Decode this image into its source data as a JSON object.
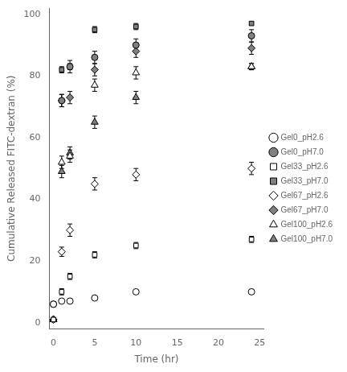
{
  "chart_data": {
    "type": "scatter",
    "xlabel": "Time (hr)",
    "ylabel": "Cumulative Released FITC-dextran (%)",
    "xlim": [
      -0.5,
      25.5
    ],
    "ylim": [
      -2,
      102
    ],
    "xticks": [
      0,
      5,
      10,
      15,
      20,
      25
    ],
    "yticks": [
      0,
      20,
      40,
      60,
      80,
      100
    ],
    "grid": false,
    "legend": "right",
    "series": [
      {
        "name": "Gel0_pH2.6",
        "x": [
          0,
          1,
          2,
          5,
          10,
          24
        ],
        "values": [
          6,
          7,
          7,
          8,
          10,
          10
        ],
        "errors": [
          0.8,
          0.5,
          0.5,
          0.5,
          0.5,
          0.8
        ],
        "marker": "circle",
        "color": "#ffffff"
      },
      {
        "name": "Gel0_pH7.0",
        "x": [
          0,
          1,
          2,
          5,
          10,
          24
        ],
        "values": [
          6,
          72,
          83,
          86,
          90,
          93
        ],
        "errors": [
          0.8,
          2,
          2,
          2,
          2,
          2
        ],
        "marker": "circle",
        "color": "#808080"
      },
      {
        "name": "Gel33_pH2.6",
        "x": [
          0,
          1,
          2,
          5,
          10,
          24
        ],
        "values": [
          1,
          10,
          15,
          22,
          25,
          27
        ],
        "errors": [
          0.3,
          1,
          1,
          1,
          1,
          1
        ],
        "marker": "square",
        "color": "#ffffff"
      },
      {
        "name": "Gel33_pH7.0",
        "x": [
          0,
          1,
          2,
          5,
          10,
          24
        ],
        "values": [
          1,
          82,
          83,
          95,
          96,
          97
        ],
        "errors": [
          0.3,
          1,
          1,
          1,
          1,
          0.5
        ],
        "marker": "square",
        "color": "#808080"
      },
      {
        "name": "Gel67_pH2.6",
        "x": [
          0,
          1,
          2,
          5,
          10,
          24
        ],
        "values": [
          1,
          23,
          30,
          45,
          48,
          50
        ],
        "errors": [
          0.3,
          1.5,
          2,
          2,
          2,
          2
        ],
        "marker": "diamond",
        "color": "#ffffff"
      },
      {
        "name": "Gel67_pH7.0",
        "x": [
          0,
          1,
          2,
          5,
          10,
          24
        ],
        "values": [
          1,
          72,
          73,
          82,
          88,
          89
        ],
        "errors": [
          0.3,
          2,
          2,
          2,
          2,
          2
        ],
        "marker": "diamond",
        "color": "#808080"
      },
      {
        "name": "Gel100_pH2.6",
        "x": [
          0,
          1,
          2,
          5,
          10,
          24
        ],
        "values": [
          1,
          52,
          54,
          77,
          81,
          83
        ],
        "errors": [
          0.3,
          2,
          2,
          2,
          2,
          1
        ],
        "marker": "triangle",
        "color": "#ffffff"
      },
      {
        "name": "Gel100_pH7.0",
        "x": [
          0,
          1,
          2,
          5,
          10,
          24
        ],
        "values": [
          1,
          49,
          55,
          65,
          73,
          83
        ],
        "errors": [
          0.3,
          2,
          2,
          2,
          2,
          1
        ],
        "marker": "triangle",
        "color": "#808080"
      }
    ]
  }
}
